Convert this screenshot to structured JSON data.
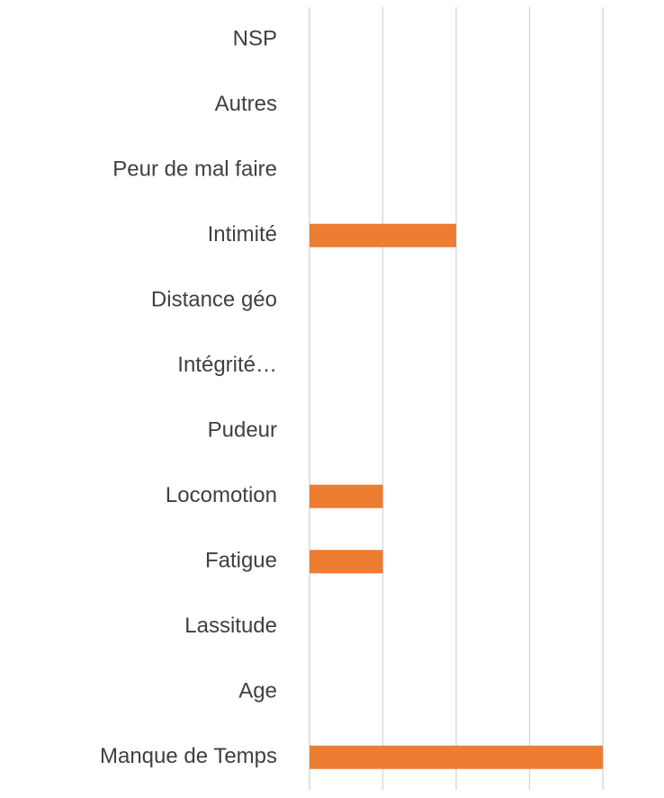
{
  "chart_data": {
    "type": "barh",
    "categories": [
      "Manque de Temps",
      "Age",
      "Lassitude",
      "Fatigue",
      "Locomotion",
      "Pudeur",
      "Intégrité…",
      "Distance géo",
      "Intimité",
      "Peur de mal faire",
      "Autres",
      "NSP"
    ],
    "values": [
      4,
      0,
      0,
      1,
      1,
      0,
      0,
      0,
      2,
      0,
      0,
      0
    ],
    "color": "#ed7d31",
    "xlim": [
      0,
      4
    ],
    "xticks": [
      0,
      1,
      2,
      3,
      4
    ],
    "grid": true
  }
}
